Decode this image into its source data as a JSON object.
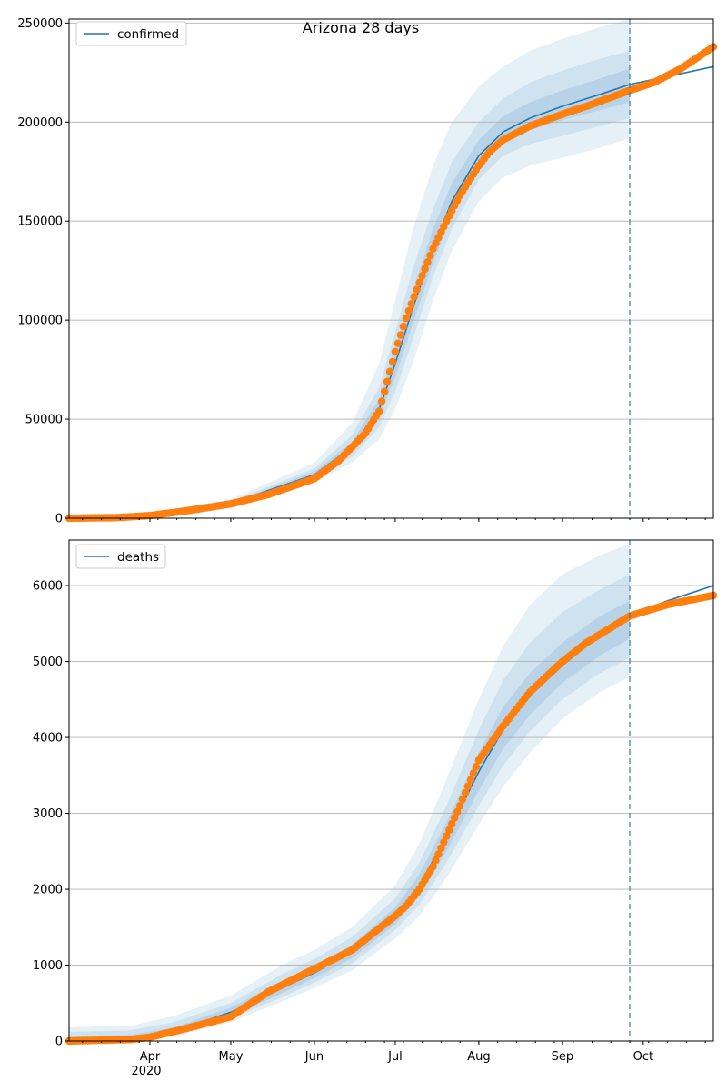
{
  "figure": {
    "title": "Arizona 28 days",
    "forecast_start": "2020-09-26",
    "colors": {
      "fit_line": "#1f77b4",
      "observed": "#ff7f0e",
      "band": "#1f77b4",
      "forecast_marker": "#1f77b4",
      "grid": "#b0b0b0"
    }
  },
  "chart_data": [
    {
      "type": "line",
      "panel": "top",
      "legend": "confirmed",
      "legend_position": "top-left",
      "x_range": [
        "2020-03-02",
        "2020-10-27"
      ],
      "ylim": [
        0,
        252000
      ],
      "yticks": [
        0,
        50000,
        100000,
        150000,
        200000,
        250000
      ],
      "grid": "horizontal",
      "fit": {
        "x": [
          "2020-03-02",
          "2020-04-01",
          "2020-05-01",
          "2020-06-01",
          "2020-06-15",
          "2020-06-25",
          "2020-07-01",
          "2020-07-08",
          "2020-07-15",
          "2020-07-22",
          "2020-08-01",
          "2020-08-10",
          "2020-08-20",
          "2020-09-01",
          "2020-09-15",
          "2020-09-26",
          "2020-10-10",
          "2020-10-27"
        ],
        "y": [
          0,
          1500,
          7500,
          22000,
          36000,
          55000,
          78000,
          108000,
          136000,
          160000,
          183000,
          195000,
          202000,
          208000,
          214000,
          219000,
          223000,
          228000
        ]
      },
      "bands": {
        "x": [
          "2020-03-02",
          "2020-04-01",
          "2020-05-01",
          "2020-06-01",
          "2020-06-15",
          "2020-06-25",
          "2020-07-01",
          "2020-07-08",
          "2020-07-15",
          "2020-07-22",
          "2020-08-01",
          "2020-08-10",
          "2020-08-20",
          "2020-09-01",
          "2020-09-15",
          "2020-09-26"
        ],
        "outer_lo": [
          0,
          1000,
          6000,
          18000,
          28000,
          40000,
          55000,
          80000,
          110000,
          135000,
          160000,
          172000,
          178000,
          182000,
          187000,
          192000
        ],
        "outer_hi": [
          0,
          2500,
          9500,
          28000,
          48000,
          78000,
          110000,
          148000,
          178000,
          200000,
          218000,
          228000,
          236000,
          242000,
          248000,
          252000
        ],
        "mid_lo": [
          0,
          1200,
          6800,
          20000,
          31000,
          46000,
          64000,
          92000,
          122000,
          146000,
          171000,
          183000,
          189000,
          193000,
          198000,
          202000
        ],
        "mid_hi": [
          0,
          2000,
          8500,
          25000,
          42000,
          66000,
          94000,
          128000,
          156000,
          180000,
          200000,
          212000,
          220000,
          226000,
          232000,
          236000
        ],
        "inner_lo": [
          0,
          1350,
          7200,
          21000,
          34000,
          51000,
          71000,
          100000,
          129000,
          153000,
          177000,
          189000,
          196000,
          201000,
          206000,
          210000
        ],
        "inner_hi": [
          0,
          1700,
          7900,
          23500,
          38500,
          60000,
          86000,
          117000,
          146000,
          169000,
          191000,
          203000,
          210000,
          216000,
          222000,
          227000
        ]
      },
      "observed": {
        "x": [
          "2020-03-02",
          "2020-03-20",
          "2020-04-01",
          "2020-04-15",
          "2020-05-01",
          "2020-05-15",
          "2020-06-01",
          "2020-06-10",
          "2020-06-20",
          "2020-06-25",
          "2020-07-01",
          "2020-07-05",
          "2020-07-10",
          "2020-07-15",
          "2020-07-20",
          "2020-07-25",
          "2020-08-01",
          "2020-08-05",
          "2020-08-10",
          "2020-08-20",
          "2020-09-01",
          "2020-09-10",
          "2020-09-26",
          "2020-10-05",
          "2020-10-15",
          "2020-10-27"
        ],
        "y": [
          0,
          300,
          1300,
          3800,
          7200,
          12000,
          20000,
          29000,
          43000,
          54000,
          84000,
          101000,
          119000,
          136000,
          150000,
          163000,
          178000,
          185000,
          191000,
          198000,
          204000,
          208000,
          216000,
          220000,
          227000,
          238000
        ]
      }
    },
    {
      "type": "line",
      "panel": "bottom",
      "legend": "deaths",
      "legend_position": "top-left",
      "x_range": [
        "2020-03-02",
        "2020-10-27"
      ],
      "ylim": [
        0,
        6600
      ],
      "yticks": [
        0,
        1000,
        2000,
        3000,
        4000,
        5000,
        6000
      ],
      "xticks": [
        "Apr",
        "May",
        "Jun",
        "Jul",
        "Aug",
        "Sep",
        "Oct"
      ],
      "xtick_dates": [
        "2020-04-01",
        "2020-05-01",
        "2020-06-01",
        "2020-07-01",
        "2020-08-01",
        "2020-09-01",
        "2020-10-01"
      ],
      "year_label": "2020",
      "grid": "horizontal",
      "fit": {
        "x": [
          "2020-03-02",
          "2020-03-25",
          "2020-04-10",
          "2020-05-01",
          "2020-05-20",
          "2020-06-01",
          "2020-06-15",
          "2020-07-01",
          "2020-07-10",
          "2020-07-20",
          "2020-08-01",
          "2020-08-10",
          "2020-08-20",
          "2020-09-01",
          "2020-09-15",
          "2020-09-26",
          "2020-10-10",
          "2020-10-27"
        ],
        "y": [
          0,
          20,
          130,
          380,
          700,
          900,
          1180,
          1650,
          2050,
          2700,
          3550,
          4100,
          4550,
          4950,
          5350,
          5600,
          5800,
          6000
        ]
      },
      "bands": {
        "x": [
          "2020-03-02",
          "2020-03-25",
          "2020-04-10",
          "2020-05-01",
          "2020-05-20",
          "2020-06-01",
          "2020-06-15",
          "2020-07-01",
          "2020-07-10",
          "2020-07-20",
          "2020-08-01",
          "2020-08-10",
          "2020-08-20",
          "2020-09-01",
          "2020-09-15",
          "2020-09-26"
        ],
        "outer_lo": [
          0,
          0,
          60,
          250,
          520,
          700,
          930,
          1350,
          1650,
          2150,
          2850,
          3350,
          3800,
          4250,
          4600,
          4800
        ],
        "outer_hi": [
          180,
          200,
          330,
          600,
          1000,
          1200,
          1500,
          2050,
          2600,
          3450,
          4500,
          5200,
          5750,
          6150,
          6400,
          6550
        ],
        "mid_lo": [
          0,
          0,
          80,
          300,
          580,
          770,
          1020,
          1460,
          1800,
          2350,
          3100,
          3630,
          4080,
          4500,
          4850,
          5050
        ],
        "mid_hi": [
          120,
          140,
          250,
          500,
          880,
          1080,
          1370,
          1880,
          2350,
          3100,
          4100,
          4750,
          5250,
          5650,
          5950,
          6150
        ],
        "inner_lo": [
          0,
          0,
          100,
          330,
          630,
          830,
          1090,
          1540,
          1910,
          2500,
          3300,
          3850,
          4300,
          4720,
          5080,
          5300
        ],
        "inner_hi": [
          60,
          80,
          180,
          440,
          780,
          980,
          1270,
          1760,
          2200,
          2880,
          3800,
          4400,
          4850,
          5250,
          5600,
          5800
        ]
      },
      "observed": {
        "x": [
          "2020-03-02",
          "2020-03-25",
          "2020-04-01",
          "2020-04-15",
          "2020-05-01",
          "2020-05-15",
          "2020-06-01",
          "2020-06-15",
          "2020-07-01",
          "2020-07-05",
          "2020-07-10",
          "2020-07-15",
          "2020-07-20",
          "2020-07-25",
          "2020-08-01",
          "2020-08-10",
          "2020-08-20",
          "2020-09-01",
          "2020-09-10",
          "2020-09-26",
          "2020-10-10",
          "2020-10-27"
        ],
        "y": [
          0,
          20,
          50,
          170,
          320,
          650,
          950,
          1200,
          1650,
          1780,
          2000,
          2300,
          2700,
          3100,
          3700,
          4150,
          4600,
          5000,
          5250,
          5600,
          5750,
          5870
        ]
      }
    }
  ]
}
